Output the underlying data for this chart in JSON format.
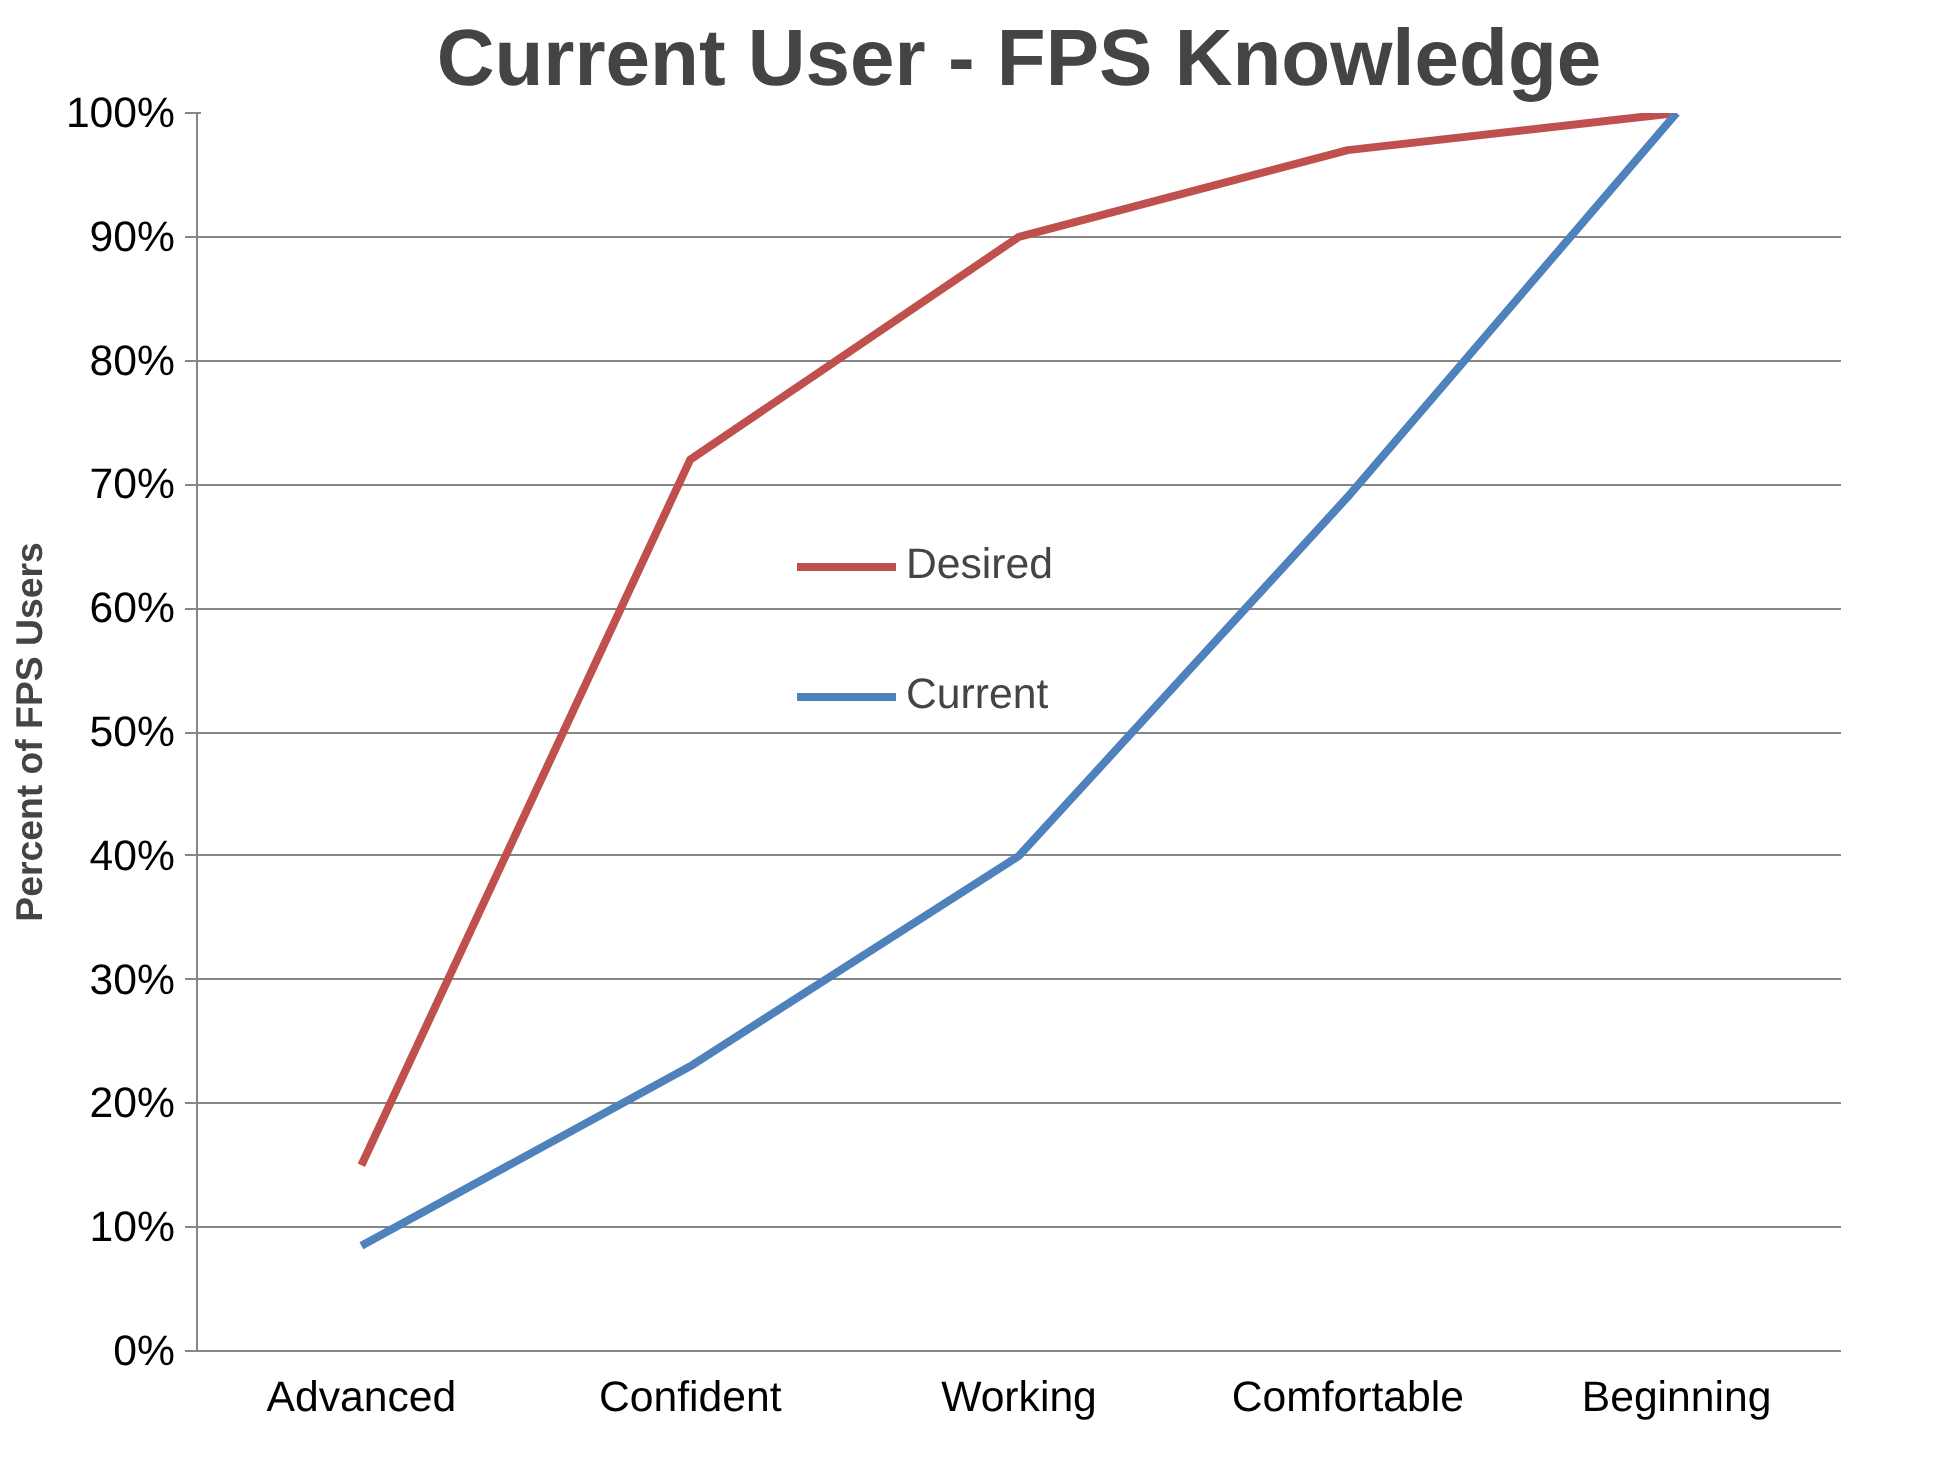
{
  "chart_data": {
    "type": "line",
    "title": "Current User - FPS Knowledge",
    "ylabel": "Percent of FPS Users",
    "categories": [
      "Advanced",
      "Confident",
      "Working",
      "Comfortable",
      "Beginning"
    ],
    "series": [
      {
        "name": "Desired",
        "color": "#c0504d",
        "values": [
          15,
          72,
          90,
          97,
          100
        ]
      },
      {
        "name": "Current",
        "color": "#4f81bd",
        "values": [
          8.5,
          23,
          40,
          69,
          100
        ]
      }
    ],
    "ylim": [
      0,
      100
    ],
    "yticks": [
      {
        "value": 0,
        "label": "0%"
      },
      {
        "value": 10,
        "label": "10%"
      },
      {
        "value": 20,
        "label": "20%"
      },
      {
        "value": 30,
        "label": "30%"
      },
      {
        "value": 40,
        "label": "40%"
      },
      {
        "value": 50,
        "label": "50%"
      },
      {
        "value": 60,
        "label": "60%"
      },
      {
        "value": 70,
        "label": "70%"
      },
      {
        "value": 80,
        "label": "80%"
      },
      {
        "value": 90,
        "label": "90%"
      },
      {
        "value": 100,
        "label": "100%"
      }
    ],
    "grid": "y",
    "legend": "center",
    "marker": "none",
    "line_style": "solid"
  }
}
